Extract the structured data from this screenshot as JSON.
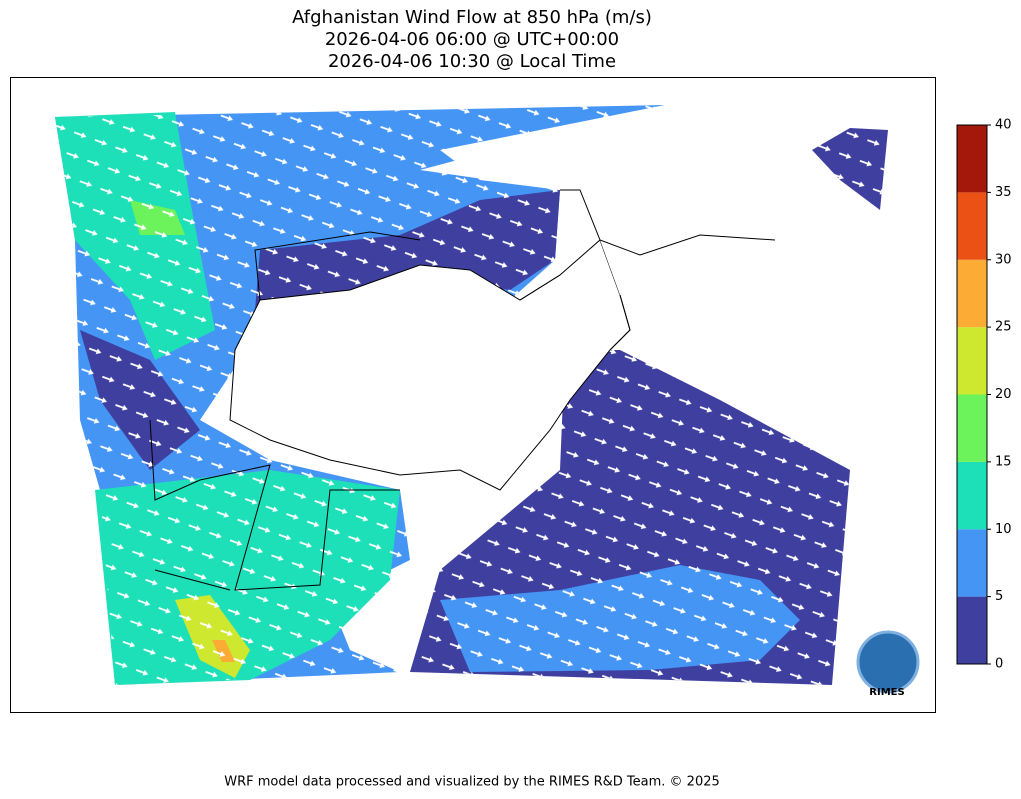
{
  "title_lines": [
    "Afghanistan Wind Flow at 850 hPa (m/s)",
    "2026-04-06 06:00 @ UTC+00:00",
    "2026-04-06 10:30 @ Local Time"
  ],
  "colorbar": {
    "levels": [
      0,
      5,
      10,
      15,
      20,
      25,
      30,
      35,
      40
    ],
    "colors": [
      "#3f3f9f",
      "#4595f5",
      "#1ee0b8",
      "#6cf25a",
      "#cde82e",
      "#fcab35",
      "#eb5014",
      "#a4180b"
    ]
  },
  "footer": "WRF model data processed and visualized by the RIMES R&D Team. © 2025",
  "logo": {
    "text": "RIMES"
  }
}
